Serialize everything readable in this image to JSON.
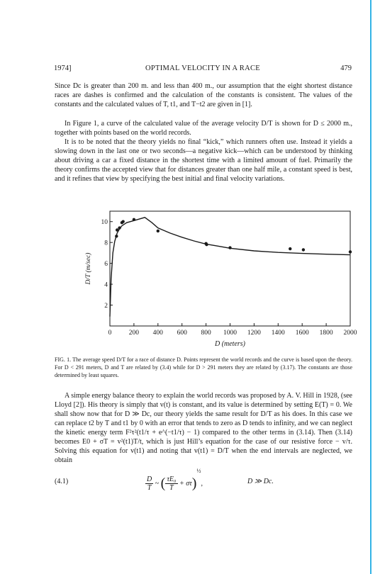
{
  "header": {
    "year": "1974]",
    "running_title": "OPTIMAL VELOCITY IN A RACE",
    "page_number": "479"
  },
  "paragraphs": {
    "p1": "Since Dc is greater than 200 m. and less than 400 m., our assumption that the eight shortest distance races are dashes is confirmed and the calculation of the constants is consistent. The values of the constants and the calculated values of T, t1, and T−t2 are given in [1].",
    "p2": "In Figure 1, a curve of the calculated value of the average velocity D/T is shown for D ≤ 2000 m., together with points based on the world records.",
    "p3": "It is to be noted that the theory yields no final “kick,” which runners often use. Instead it yields a slowing down in the last one or two seconds—a negative kick—which can be understood by thinking about driving a car a fixed distance in the shortest time with a limited amount of fuel. Primarily the theory confirms the accepted view that for distances greater than one half mile, a constant speed is best, and it refines that view by specifying the best initial and final velocity variations.",
    "p4": "A simple energy balance theory to explain the world records was proposed by A. V. Hill in 1928, (see Lloyd [2]). His theory is simply that v(t) is constant, and its value is determined by setting E(T) = 0. We shall show now that for D ≫ Dc, our theory yields the same result for D/T as his does. In this case we can replace t2 by T and t1 by 0 with an error that tends to zero as D tends to infinity, and we can neglect the kinetic energy term F²τ²(t1/τ + e^(−t1/τ) − 1) compared to the other terms in (3.14). Then (3.14) becomes E0 + σT = v²(t1)T/t, which is just Hill’s equation for the case of our resistive force − v/τ. Solving this equation for v(t1) and noting that v(t1) = D/T when the end intervals are neglected, we obtain"
  },
  "caption": "FIG. 1. The average speed D/T for a race of distance D. Points represent the world records and the curve is based upon the theory. For D < 291 meters, D and T are related by (3.4) while for D > 291 meters they are related by (3.17). The constants are those determined by least squares.",
  "equation": {
    "number": "(4.1)",
    "lhs_num": "D",
    "lhs_den": "T",
    "tilde": "~",
    "inner_num": "τE₀",
    "inner_den": "T",
    "plus_term": "+ στ",
    "exponent": "½",
    "comma": ",",
    "condition": "D ≫ Dc."
  },
  "chart_data": {
    "type": "line",
    "xlabel": "D (meters)",
    "ylabel": "D/T  (m/sec)",
    "xlim": [
      0,
      2000
    ],
    "ylim": [
      0,
      11
    ],
    "xticks": [
      0,
      200,
      400,
      600,
      800,
      1000,
      1200,
      1400,
      1600,
      1800,
      2000
    ],
    "yticks": [
      2,
      4,
      6,
      8,
      10
    ],
    "xtick_labels": [
      "0",
      "200",
      "400",
      "600",
      "800",
      "1000",
      "1200",
      "1400",
      "1600",
      "1800",
      "2000"
    ],
    "ytick_labels": [
      "2",
      "4",
      "6",
      "8",
      "10"
    ],
    "curve": {
      "x": [
        0,
        10,
        25,
        40,
        60,
        80,
        100,
        140,
        200,
        291,
        350,
        400,
        500,
        600,
        700,
        800,
        900,
        1000,
        1200,
        1400,
        1600,
        1800,
        2000
      ],
      "y": [
        0.9,
        4.5,
        7.0,
        8.1,
        8.9,
        9.3,
        9.6,
        9.9,
        10.1,
        10.4,
        9.9,
        9.4,
        8.9,
        8.5,
        8.15,
        7.85,
        7.65,
        7.45,
        7.2,
        7.05,
        6.95,
        6.88,
        6.82
      ]
    },
    "points": {
      "x": [
        55,
        60,
        80,
        100,
        110,
        200,
        400,
        800,
        805,
        1000,
        1500,
        1610,
        2000
      ],
      "y": [
        8.6,
        9.2,
        9.4,
        9.9,
        10.0,
        10.2,
        9.1,
        7.9,
        7.8,
        7.5,
        7.4,
        7.3,
        7.1
      ]
    },
    "colors": {
      "ink": "#1a1a1a"
    }
  }
}
